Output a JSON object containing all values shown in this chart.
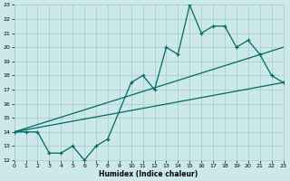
{
  "xlabel": "Humidex (Indice chaleur)",
  "xlim": [
    0,
    23
  ],
  "ylim": [
    12,
    23
  ],
  "xticks": [
    0,
    1,
    2,
    3,
    4,
    5,
    6,
    7,
    8,
    9,
    10,
    11,
    12,
    13,
    14,
    15,
    16,
    17,
    18,
    19,
    20,
    21,
    22,
    23
  ],
  "yticks": [
    12,
    13,
    14,
    15,
    16,
    17,
    18,
    19,
    20,
    21,
    22,
    23
  ],
  "background_color": "#cde8e8",
  "grid_color": "#aacece",
  "line_color": "#006868",
  "line1_x": [
    0,
    1,
    2,
    3,
    4,
    5,
    6,
    7,
    8,
    10,
    11,
    12,
    13,
    14,
    15,
    16,
    17,
    18,
    19,
    20,
    21,
    22,
    23
  ],
  "line1_y": [
    14.0,
    14.0,
    14.0,
    12.5,
    12.5,
    13.0,
    12.0,
    13.0,
    13.5,
    17.5,
    18.0,
    17.0,
    20.0,
    19.5,
    23.0,
    21.0,
    21.5,
    21.5,
    20.0,
    20.5,
    19.5,
    18.0,
    17.5
  ],
  "line2_x": [
    0,
    23
  ],
  "line2_y": [
    14.0,
    20.0
  ],
  "line3_x": [
    0,
    23
  ],
  "line3_y": [
    14.0,
    17.5
  ]
}
